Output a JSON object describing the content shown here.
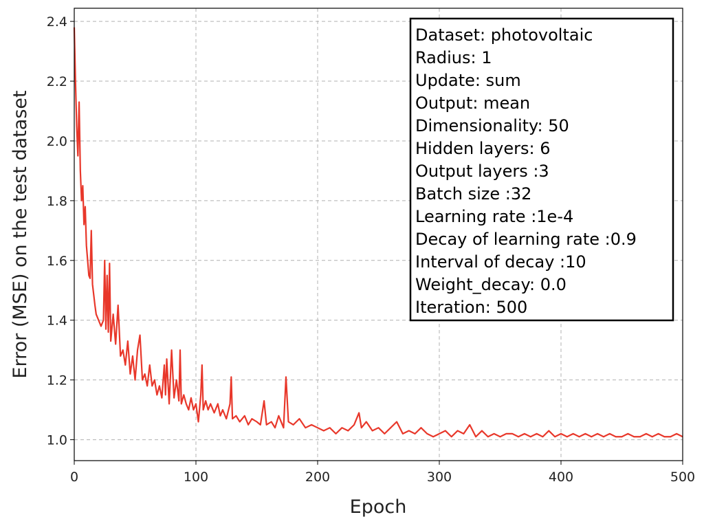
{
  "chart_data": {
    "type": "line",
    "xlabel": "Epoch",
    "ylabel": "Error (MSE) on the test dataset",
    "xlim": [
      0,
      500
    ],
    "ylim": [
      0.93,
      2.444
    ],
    "xticks": [
      0,
      100,
      200,
      300,
      400,
      500
    ],
    "yticks": [
      {
        "value": 1.0,
        "label": "1.0"
      },
      1.2,
      1.4,
      1.6,
      1.8,
      {
        "value": 2.0,
        "label": "2.0"
      },
      2.2,
      2.4
    ],
    "grid": true,
    "annotation": [
      "Dataset: photovoltaic",
      "Radius: 1",
      "Update: sum",
      "Output: mean",
      "Dimensionality: 50",
      "Hidden layers: 6",
      "Output layers :3",
      "Batch size :32",
      "Learning rate :1e-4",
      "Decay of learning rate :0.9",
      "Interval of decay :10",
      "Weight_decay: 0.0",
      "Iteration: 500"
    ],
    "series": [
      {
        "color": "#e8372a",
        "x": [
          0,
          1,
          2,
          3,
          4,
          5,
          6,
          7,
          8,
          9,
          10,
          11,
          12,
          13,
          14,
          15,
          17,
          18,
          20,
          22,
          24,
          25,
          26,
          27,
          28,
          29,
          30,
          32,
          34,
          36,
          38,
          40,
          42,
          44,
          46,
          48,
          50,
          52,
          54,
          56,
          58,
          60,
          62,
          64,
          66,
          68,
          70,
          72,
          74,
          75,
          76,
          78,
          80,
          82,
          84,
          86,
          87,
          88,
          90,
          92,
          94,
          96,
          98,
          100,
          102,
          104,
          105,
          106,
          108,
          110,
          112,
          115,
          118,
          120,
          122,
          125,
          128,
          129,
          130,
          133,
          136,
          140,
          143,
          146,
          150,
          153,
          156,
          158,
          162,
          165,
          168,
          172,
          174,
          176,
          180,
          185,
          190,
          195,
          200,
          205,
          210,
          215,
          220,
          225,
          230,
          234,
          236,
          240,
          245,
          250,
          255,
          260,
          265,
          270,
          275,
          280,
          285,
          290,
          295,
          300,
          305,
          310,
          315,
          320,
          325,
          330,
          335,
          340,
          345,
          350,
          355,
          360,
          365,
          370,
          375,
          380,
          385,
          390,
          395,
          400,
          405,
          410,
          415,
          420,
          425,
          430,
          435,
          440,
          445,
          450,
          455,
          460,
          465,
          470,
          475,
          480,
          485,
          490,
          495,
          500
        ],
        "values": [
          2.38,
          2.2,
          2.05,
          1.95,
          2.13,
          1.9,
          1.8,
          1.85,
          1.72,
          1.78,
          1.65,
          1.6,
          1.55,
          1.54,
          1.7,
          1.52,
          1.45,
          1.42,
          1.4,
          1.38,
          1.4,
          1.6,
          1.37,
          1.55,
          1.36,
          1.59,
          1.33,
          1.42,
          1.32,
          1.45,
          1.28,
          1.3,
          1.25,
          1.33,
          1.22,
          1.28,
          1.2,
          1.3,
          1.35,
          1.2,
          1.22,
          1.18,
          1.25,
          1.18,
          1.2,
          1.15,
          1.18,
          1.14,
          1.25,
          1.15,
          1.27,
          1.12,
          1.3,
          1.14,
          1.2,
          1.13,
          1.3,
          1.12,
          1.15,
          1.12,
          1.1,
          1.14,
          1.1,
          1.12,
          1.06,
          1.15,
          1.25,
          1.1,
          1.13,
          1.1,
          1.12,
          1.09,
          1.12,
          1.08,
          1.1,
          1.07,
          1.12,
          1.21,
          1.07,
          1.08,
          1.06,
          1.08,
          1.05,
          1.07,
          1.06,
          1.05,
          1.13,
          1.05,
          1.06,
          1.04,
          1.08,
          1.04,
          1.21,
          1.06,
          1.05,
          1.07,
          1.04,
          1.05,
          1.04,
          1.03,
          1.04,
          1.02,
          1.04,
          1.03,
          1.05,
          1.09,
          1.04,
          1.06,
          1.03,
          1.04,
          1.02,
          1.04,
          1.06,
          1.02,
          1.03,
          1.02,
          1.04,
          1.02,
          1.01,
          1.02,
          1.03,
          1.01,
          1.03,
          1.02,
          1.05,
          1.01,
          1.03,
          1.01,
          1.02,
          1.01,
          1.02,
          1.02,
          1.01,
          1.02,
          1.01,
          1.02,
          1.01,
          1.03,
          1.01,
          1.02,
          1.01,
          1.02,
          1.01,
          1.02,
          1.01,
          1.02,
          1.01,
          1.02,
          1.01,
          1.01,
          1.02,
          1.01,
          1.01,
          1.02,
          1.01,
          1.02,
          1.01,
          1.01,
          1.02,
          1.01
        ]
      }
    ]
  }
}
